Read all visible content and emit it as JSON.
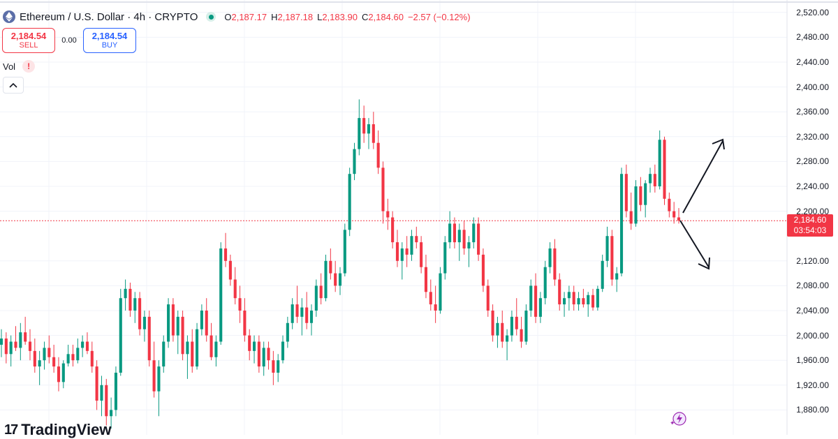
{
  "header": {
    "symbol_title": "Ethereum / U.S. Dollar · 4h · CRYPTO",
    "ohlc": {
      "o_label": "O",
      "o_value": "2,187.17",
      "h_label": "H",
      "h_value": "2,187.18",
      "l_label": "L",
      "l_value": "2,183.90",
      "c_label": "C",
      "c_value": "2,184.60",
      "change": "−2.57 (−0.12%)"
    }
  },
  "trade": {
    "sell_price": "2,184.54",
    "sell_label": "SELL",
    "spread": "0.00",
    "buy_price": "2,184.54",
    "buy_label": "BUY"
  },
  "volume": {
    "label": "Vol",
    "warning_symbol": "!"
  },
  "price_axis": {
    "labels": [
      "2,520.00",
      "2,480.00",
      "2,440.00",
      "2,400.00",
      "2,360.00",
      "2,320.00",
      "2,280.00",
      "2,240.00",
      "2,200.00",
      "2,120.00",
      "2,080.00",
      "2,040.00",
      "2,000.00",
      "1,960.00",
      "1,920.00",
      "1,880.00"
    ],
    "current_price": "2,184.60",
    "countdown": "03:54:03"
  },
  "branding": {
    "logo_mark": "17",
    "logo_text": "TradingView"
  },
  "colors": {
    "up": "#089981",
    "down": "#f23645",
    "grid": "#f0f3fa",
    "accent": "#2962ff"
  },
  "chart_data": {
    "type": "candlestick",
    "ylim": [
      1840,
      2540
    ],
    "current_price": 2184.6,
    "candles": [
      [
        1985,
        2010,
        1965,
        1995
      ],
      [
        1995,
        2005,
        1955,
        1970
      ],
      [
        1970,
        2000,
        1950,
        1990
      ],
      [
        1990,
        2015,
        1975,
        1980
      ],
      [
        1980,
        2020,
        1960,
        2005
      ],
      [
        2005,
        2030,
        1985,
        1990
      ],
      [
        1990,
        2010,
        1960,
        1975
      ],
      [
        1975,
        1995,
        1940,
        1950
      ],
      [
        1950,
        1975,
        1920,
        1960
      ],
      [
        1960,
        1990,
        1945,
        1980
      ],
      [
        1980,
        2000,
        1955,
        1965
      ],
      [
        1965,
        1985,
        1940,
        1950
      ],
      [
        1950,
        1965,
        1910,
        1925
      ],
      [
        1925,
        1960,
        1915,
        1955
      ],
      [
        1955,
        1985,
        1950,
        1970
      ],
      [
        1970,
        1985,
        1950,
        1960
      ],
      [
        1960,
        1995,
        1955,
        1980
      ],
      [
        1980,
        2000,
        1965,
        1990
      ],
      [
        1990,
        2005,
        1970,
        1975
      ],
      [
        1975,
        1990,
        1940,
        1950
      ],
      [
        1950,
        1960,
        1880,
        1895
      ],
      [
        1895,
        1935,
        1870,
        1920
      ],
      [
        1920,
        1930,
        1855,
        1870
      ],
      [
        1870,
        1900,
        1850,
        1880
      ],
      [
        1880,
        1950,
        1870,
        1940
      ],
      [
        1940,
        2075,
        1935,
        2060
      ],
      [
        2060,
        2090,
        2040,
        2075
      ],
      [
        2075,
        2085,
        2030,
        2040
      ],
      [
        2040,
        2070,
        2020,
        2060
      ],
      [
        2060,
        2070,
        2000,
        2010
      ],
      [
        2010,
        2040,
        1990,
        2030
      ],
      [
        2030,
        2040,
        1950,
        1960
      ],
      [
        1960,
        1990,
        1900,
        1910
      ],
      [
        1910,
        1960,
        1870,
        1950
      ],
      [
        1950,
        2000,
        1940,
        1990
      ],
      [
        1990,
        2060,
        1980,
        2050
      ],
      [
        2050,
        2060,
        1990,
        2000
      ],
      [
        2000,
        2040,
        1970,
        2030
      ],
      [
        2030,
        2040,
        1960,
        1970
      ],
      [
        1970,
        2000,
        1930,
        1990
      ],
      [
        1990,
        2010,
        1940,
        1950
      ],
      [
        1950,
        2020,
        1945,
        2010
      ],
      [
        2010,
        2050,
        2000,
        2040
      ],
      [
        2040,
        2060,
        1990,
        2000
      ],
      [
        2000,
        2020,
        1960,
        1965
      ],
      [
        1965,
        2000,
        1950,
        1990
      ],
      [
        1990,
        2150,
        1985,
        2140
      ],
      [
        2140,
        2165,
        2110,
        2120
      ],
      [
        2120,
        2130,
        2080,
        2090
      ],
      [
        2090,
        2110,
        2050,
        2060
      ],
      [
        2060,
        2080,
        2020,
        2040
      ],
      [
        2040,
        2060,
        1990,
        2000
      ],
      [
        2000,
        2010,
        1960,
        1975
      ],
      [
        1975,
        2000,
        1955,
        1990
      ],
      [
        1990,
        2000,
        1940,
        1950
      ],
      [
        1950,
        1990,
        1935,
        1980
      ],
      [
        1980,
        1990,
        1945,
        1960
      ],
      [
        1960,
        1975,
        1920,
        1940
      ],
      [
        1940,
        1970,
        1925,
        1960
      ],
      [
        1960,
        2000,
        1955,
        1990
      ],
      [
        1990,
        2030,
        1980,
        2020
      ],
      [
        2020,
        2060,
        2010,
        2050
      ],
      [
        2050,
        2080,
        2020,
        2030
      ],
      [
        2030,
        2060,
        2000,
        2045
      ],
      [
        2045,
        2070,
        2010,
        2020
      ],
      [
        2020,
        2050,
        2000,
        2040
      ],
      [
        2040,
        2090,
        2030,
        2080
      ],
      [
        2080,
        2100,
        2050,
        2060
      ],
      [
        2060,
        2130,
        2055,
        2120
      ],
      [
        2120,
        2140,
        2090,
        2100
      ],
      [
        2100,
        2120,
        2070,
        2080
      ],
      [
        2080,
        2110,
        2065,
        2100
      ],
      [
        2100,
        2180,
        2095,
        2170
      ],
      [
        2170,
        2270,
        2160,
        2260
      ],
      [
        2260,
        2310,
        2250,
        2300
      ],
      [
        2300,
        2380,
        2290,
        2350
      ],
      [
        2350,
        2370,
        2310,
        2325
      ],
      [
        2325,
        2350,
        2300,
        2340
      ],
      [
        2340,
        2360,
        2300,
        2310
      ],
      [
        2310,
        2330,
        2260,
        2270
      ],
      [
        2270,
        2280,
        2180,
        2200
      ],
      [
        2200,
        2220,
        2170,
        2190
      ],
      [
        2190,
        2200,
        2140,
        2150
      ],
      [
        2150,
        2170,
        2110,
        2120
      ],
      [
        2120,
        2150,
        2090,
        2140
      ],
      [
        2140,
        2160,
        2110,
        2130
      ],
      [
        2130,
        2170,
        2120,
        2160
      ],
      [
        2160,
        2175,
        2140,
        2150
      ],
      [
        2150,
        2160,
        2100,
        2110
      ],
      [
        2110,
        2130,
        2060,
        2070
      ],
      [
        2070,
        2090,
        2040,
        2050
      ],
      [
        2050,
        2080,
        2020,
        2040
      ],
      [
        2040,
        2110,
        2035,
        2100
      ],
      [
        2100,
        2160,
        2090,
        2150
      ],
      [
        2150,
        2200,
        2140,
        2180
      ],
      [
        2180,
        2190,
        2140,
        2150
      ],
      [
        2150,
        2180,
        2120,
        2170
      ],
      [
        2170,
        2185,
        2130,
        2140
      ],
      [
        2140,
        2160,
        2110,
        2150
      ],
      [
        2150,
        2190,
        2140,
        2180
      ],
      [
        2180,
        2190,
        2120,
        2130
      ],
      [
        2130,
        2140,
        2070,
        2080
      ],
      [
        2080,
        2090,
        2030,
        2040
      ],
      [
        2040,
        2050,
        1990,
        2000
      ],
      [
        2000,
        2030,
        1980,
        2020
      ],
      [
        2020,
        2040,
        1980,
        1990
      ],
      [
        1990,
        2010,
        1960,
        2000
      ],
      [
        2000,
        2040,
        1990,
        2030
      ],
      [
        2030,
        2060,
        2000,
        2010
      ],
      [
        2010,
        2030,
        1980,
        1990
      ],
      [
        1990,
        2050,
        1985,
        2040
      ],
      [
        2040,
        2090,
        2030,
        2080
      ],
      [
        2080,
        2100,
        2020,
        2030
      ],
      [
        2030,
        2070,
        2020,
        2060
      ],
      [
        2060,
        2120,
        2050,
        2110
      ],
      [
        2110,
        2150,
        2100,
        2140
      ],
      [
        2140,
        2155,
        2080,
        2090
      ],
      [
        2090,
        2100,
        2040,
        2050
      ],
      [
        2050,
        2070,
        2030,
        2060
      ],
      [
        2060,
        2080,
        2040,
        2070
      ],
      [
        2070,
        2080,
        2040,
        2050
      ],
      [
        2050,
        2070,
        2040,
        2060
      ],
      [
        2060,
        2075,
        2045,
        2050
      ],
      [
        2050,
        2070,
        2030,
        2065
      ],
      [
        2065,
        2075,
        2040,
        2045
      ],
      [
        2045,
        2080,
        2040,
        2075
      ],
      [
        2075,
        2130,
        2070,
        2120
      ],
      [
        2120,
        2175,
        2110,
        2160
      ],
      [
        2160,
        2170,
        2080,
        2090
      ],
      [
        2090,
        2110,
        2070,
        2100
      ],
      [
        2100,
        2270,
        2095,
        2260
      ],
      [
        2260,
        2275,
        2190,
        2200
      ],
      [
        2200,
        2230,
        2170,
        2180
      ],
      [
        2180,
        2250,
        2175,
        2240
      ],
      [
        2240,
        2255,
        2200,
        2210
      ],
      [
        2210,
        2250,
        2190,
        2245
      ],
      [
        2245,
        2270,
        2230,
        2260
      ],
      [
        2260,
        2275,
        2230,
        2240
      ],
      [
        2240,
        2330,
        2235,
        2315
      ],
      [
        2315,
        2320,
        2210,
        2220
      ],
      [
        2220,
        2230,
        2190,
        2200
      ],
      [
        2200,
        2215,
        2180,
        2190
      ],
      [
        2190,
        2205,
        2180,
        2185
      ]
    ]
  }
}
